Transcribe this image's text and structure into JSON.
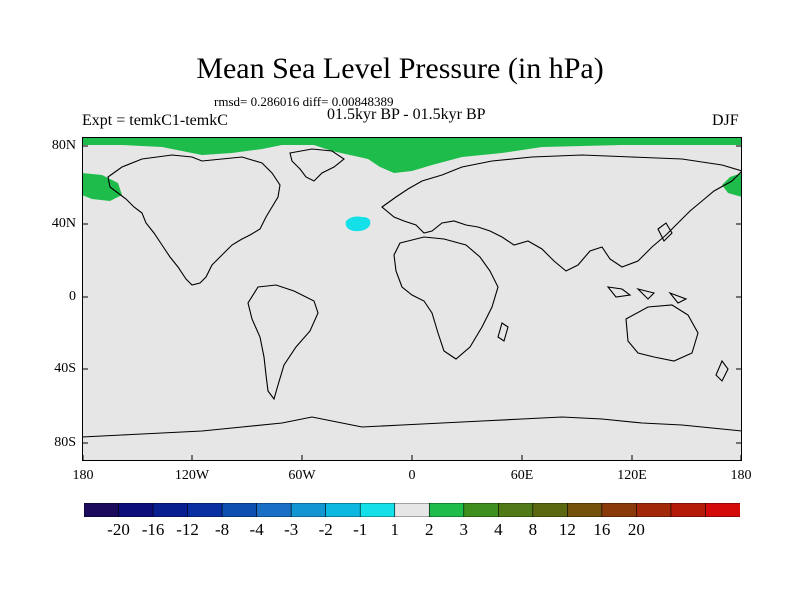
{
  "title": "Mean Sea Level Pressure (in hPa)",
  "stats": "rmsd= 0.286016 diff= 0.00848389",
  "subtitle": "01.5kyr BP - 01.5kyr BP",
  "expt": "Expt = temkC1-temkC",
  "season": "DJF",
  "lat_labels": [
    "80N",
    "40N",
    "0",
    "40S",
    "80S"
  ],
  "lon_labels": [
    "180",
    "120W",
    "60W",
    "0",
    "60E",
    "120E",
    "180"
  ],
  "colorbar": {
    "labels": [
      "-20",
      "-16",
      "-12",
      "-8",
      "-4",
      "-3",
      "-2",
      "-1",
      "1",
      "2",
      "3",
      "4",
      "8",
      "12",
      "16",
      "20"
    ],
    "colors": [
      "#1c0a5c",
      "#0e0e7a",
      "#0a1f8f",
      "#0a2fa0",
      "#0d4fb0",
      "#1a6fc4",
      "#1296d2",
      "#0cb8df",
      "#13e0e8",
      "#e6e6e6",
      "#1ebc4b",
      "#3f8f1e",
      "#4f7a16",
      "#5c6810",
      "#73520c",
      "#8a3a0a",
      "#a12808",
      "#b51a08",
      "#d40a0a"
    ]
  },
  "colors": {
    "background_field": "#e6e6e6",
    "positive_anomaly": "#1ebc4b",
    "negative_anomaly": "#13e0e8",
    "coast": "#000000"
  }
}
